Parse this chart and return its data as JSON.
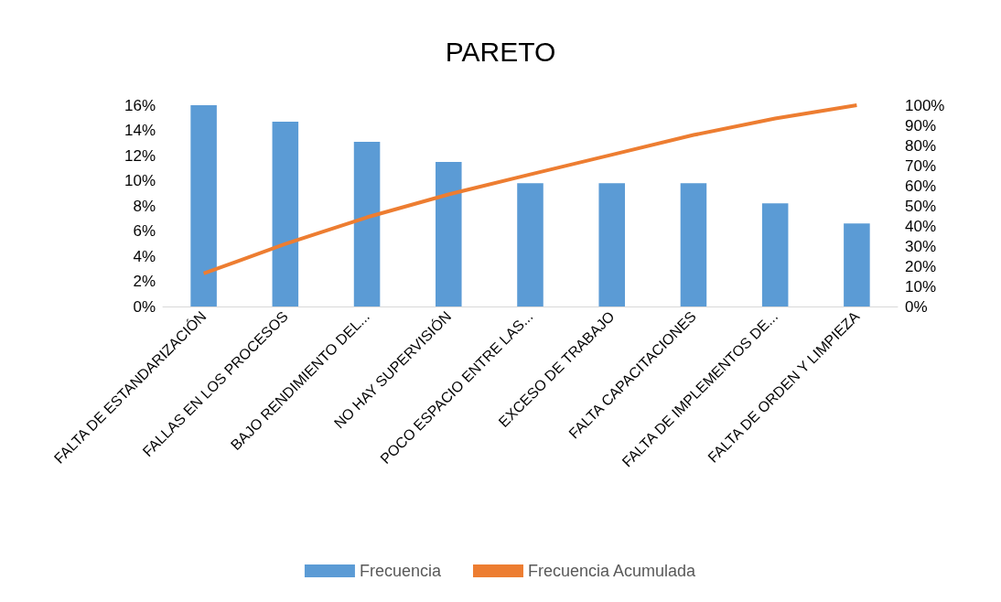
{
  "chart_data": {
    "type": "bar",
    "title": "PARETO",
    "categories": [
      "FALTA DE ESTANDARIZACIÓN",
      "FALLAS EN LOS PROCESOS",
      "BAJO RENDIMIENTO DEL...",
      "NO HAY SUPERVISIÓN",
      "POCO ESPACIO ENTRE LAS...",
      "EXCESO DE TRABAJO",
      "FALTA CAPACITACIONES",
      "FALTA DE IMPLEMENTOS DE...",
      "FALTA DE ORDEN Y LIMPIEZA"
    ],
    "series": [
      {
        "name": "Frecuencia",
        "color": "#5b9bd5",
        "values": [
          16,
          14.7,
          13.1,
          11.5,
          9.8,
          9.8,
          9.8,
          8.2,
          6.6
        ]
      },
      {
        "name": "Frecuencia Acumulada",
        "type": "line",
        "axis": "y2",
        "color": "#ed7d31",
        "values": [
          16.4,
          31.1,
          44.3,
          55.7,
          65.6,
          75.4,
          85.2,
          93.4,
          100
        ]
      }
    ],
    "ylim": [
      0,
      16
    ],
    "yticks": [
      {
        "value": 0,
        "label": "0%"
      },
      {
        "value": 2,
        "label": "2%"
      },
      {
        "value": 4,
        "label": "4%"
      },
      {
        "value": 6,
        "label": "6%"
      },
      {
        "value": 8,
        "label": "8%"
      },
      {
        "value": 10,
        "label": "10%"
      },
      {
        "value": 12,
        "label": "12%"
      },
      {
        "value": 14,
        "label": "14%"
      },
      {
        "value": 16,
        "label": "16%"
      }
    ],
    "y2lim": [
      0,
      100
    ],
    "y2ticks": [
      {
        "value": 0,
        "label": "0%"
      },
      {
        "value": 10,
        "label": "10%"
      },
      {
        "value": 20,
        "label": "20%"
      },
      {
        "value": 30,
        "label": "30%"
      },
      {
        "value": 40,
        "label": "40%"
      },
      {
        "value": 50,
        "label": "50%"
      },
      {
        "value": 60,
        "label": "60%"
      },
      {
        "value": 70,
        "label": "70%"
      },
      {
        "value": 80,
        "label": "80%"
      },
      {
        "value": 90,
        "label": "90%"
      },
      {
        "value": 100,
        "label": "100%"
      }
    ],
    "legend": "bottom",
    "grid": false,
    "marker": "none",
    "line_style": "solid"
  }
}
